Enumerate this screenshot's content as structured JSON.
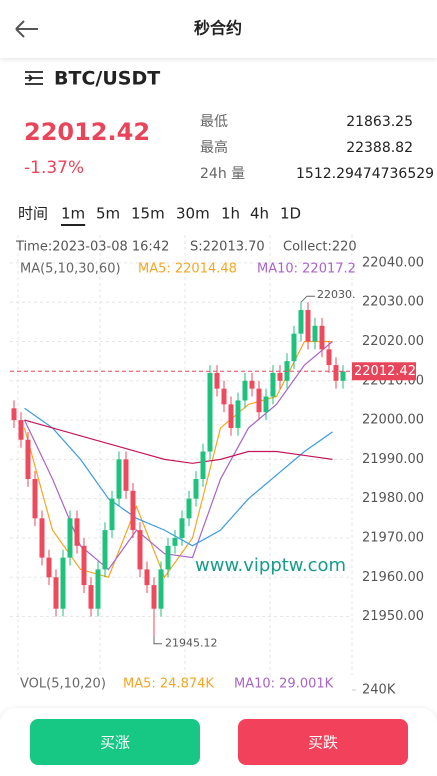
{
  "header": {
    "title": "秒合约"
  },
  "market": {
    "symbol": "BTC/USDT",
    "price": "22012.42",
    "change": "-1.37%",
    "stats": [
      {
        "label": "最低",
        "value": "21863.25"
      },
      {
        "label": "最高",
        "value": "22388.82"
      },
      {
        "label": "24h 量",
        "value": "1512.29474736529"
      }
    ]
  },
  "tabs": {
    "items": [
      "时间",
      "1m",
      "5m",
      "15m",
      "30m",
      "1h",
      "4h",
      "1D"
    ],
    "active": 1
  },
  "chart": {
    "type": "candlestick",
    "info": [
      "Time:2023-03-08 16:42",
      "S:22013.70",
      "Collect:220"
    ],
    "ma_legend": [
      "MA(5,10,30,60)",
      "MA5: 22014.48",
      "MA10: 22017.2"
    ],
    "ylim": [
      21936.4,
      22047.1
    ],
    "yticks": [
      {
        "value": 22040,
        "label": "22040.00"
      },
      {
        "value": 22030,
        "label": "22030.00"
      },
      {
        "value": 22020,
        "label": "22020.00"
      },
      {
        "value": 22010,
        "label": "22010.00"
      },
      {
        "value": 22000,
        "label": "22000.00"
      },
      {
        "value": 21990,
        "label": "21990.00"
      },
      {
        "value": 21980,
        "label": "21980.00"
      },
      {
        "value": 21970,
        "label": "21970.00"
      },
      {
        "value": 21960,
        "label": "21960.00"
      },
      {
        "value": 21950,
        "label": "21950.00"
      }
    ],
    "up_color": "#1fc27d",
    "down_color": "#ee4a5d",
    "open": [
      22003,
      22000,
      21995,
      21985,
      21975,
      21965,
      21960,
      21952,
      21965,
      21975,
      21968,
      21958,
      21952,
      21962,
      21972,
      21980,
      21990,
      21982,
      21972,
      21962,
      21958,
      21952,
      21962,
      21968,
      21970,
      21975,
      21980,
      21985,
      21992,
      22012,
      22008,
      22004,
      21998,
      22005,
      22010,
      22008,
      22002,
      22006,
      22012,
      22010,
      22015,
      22022,
      22028,
      22020,
      22024,
      22018,
      22014,
      22010
    ],
    "high": [
      22005,
      22002,
      21997,
      21987,
      21977,
      21967,
      21962,
      21967,
      21977,
      21977,
      21970,
      21960,
      21964,
      21974,
      21982,
      21992,
      21992,
      21984,
      21974,
      21964,
      21960,
      21964,
      21970,
      21972,
      21977,
      21982,
      21987,
      21994,
      22014,
      22014,
      22010,
      22006,
      22007,
      22012,
      22012,
      22010,
      22008,
      22014,
      22014,
      22017,
      22024,
      22030,
      22030,
      22026,
      22026,
      22020,
      22016,
      22014
    ],
    "low": [
      21998,
      21993,
      21983,
      21973,
      21963,
      21958,
      21950,
      21950,
      21963,
      21966,
      21956,
      21950,
      21950,
      21960,
      21970,
      21978,
      21980,
      21970,
      21960,
      21956,
      21945.12,
      21950,
      21960,
      21966,
      21968,
      21973,
      21978,
      21983,
      21990,
      22006,
      22002,
      21996,
      21996,
      22003,
      22006,
      22000,
      22000,
      22004,
      22008,
      22008,
      22013,
      22020,
      22018,
      22018,
      22016,
      22012,
      22008,
      22008
    ],
    "close": [
      22000,
      21995,
      21985,
      21975,
      21965,
      21960,
      21952,
      21965,
      21975,
      21968,
      21958,
      21952,
      21962,
      21972,
      21980,
      21990,
      21982,
      21972,
      21962,
      21958,
      21952,
      21962,
      21968,
      21970,
      21975,
      21980,
      21985,
      21992,
      22012,
      22008,
      22004,
      21998,
      22005,
      22010,
      22008,
      22002,
      22006,
      22012,
      22010,
      22015,
      22022,
      22028,
      22020,
      22024,
      22018,
      22014,
      22010,
      22012.42
    ],
    "ma_lines": [
      {
        "color": "#f5a623",
        "values": [
          21998,
          21972,
          21962,
          21960,
          21978,
          21960,
          21970,
          21998,
          22004,
          22006,
          22020,
          22020
        ]
      },
      {
        "color": "#a865c9",
        "values": [
          22000,
          21985,
          21968,
          21962,
          21972,
          21966,
          21965,
          21985,
          21998,
          22004,
          22014,
          22020
        ]
      },
      {
        "color": "#3d9be0",
        "values": [
          22003,
          21998,
          21990,
          21980,
          21975,
          21972,
          21968,
          21972,
          21980,
          21986,
          21992,
          21997
        ]
      },
      {
        "color": "#c2185b",
        "values": [
          22000,
          21998,
          21996,
          21994,
          21992,
          21990,
          21989,
          21990,
          21992,
          21992,
          21991,
          21990
        ]
      }
    ],
    "current_price": 22012.42,
    "max_marker": {
      "value": 22030,
      "label": "22030."
    },
    "min_marker": 21945.12,
    "watermark": "www.vipptw.com",
    "volume": {
      "legend": [
        "VOL(5,10,20)",
        "MA5: 24.874K",
        "MA10: 29.001K"
      ],
      "ticks": [
        {
          "value": 240000,
          "label": "240K"
        }
      ]
    }
  },
  "buttons": [
    "买涨",
    "买跌"
  ]
}
